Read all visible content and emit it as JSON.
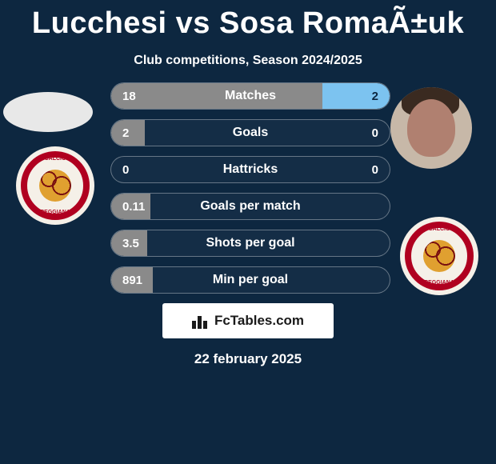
{
  "header": {
    "title": "Lucchesi vs Sosa RomaÃ±uk",
    "subtitle": "Club competitions, Season 2024/2025"
  },
  "players": {
    "left": {
      "name": "Lucchesi",
      "avatar_bg": "#e8e8e8"
    },
    "right": {
      "name": "Sosa RomaÃ±uk",
      "avatar_bg": "#c7b8a8"
    }
  },
  "club_badge": {
    "bg": "#f5f0e8",
    "ring_color": "#b00020",
    "ball_color": "#e0a030",
    "text_top": "CALCIO",
    "text_side": "ASSOC.",
    "text_bottom": "REGGIANA"
  },
  "stats": [
    {
      "label": "Matches",
      "left_val": "18",
      "right_val": "2",
      "left_pct": 76,
      "right_pct": 24,
      "right_on_bar": true
    },
    {
      "label": "Goals",
      "left_val": "2",
      "right_val": "0",
      "left_pct": 12,
      "right_pct": 0,
      "right_on_bar": false
    },
    {
      "label": "Hattricks",
      "left_val": "0",
      "right_val": "0",
      "left_pct": 0,
      "right_pct": 0,
      "right_on_bar": false
    },
    {
      "label": "Goals per match",
      "left_val": "0.11",
      "right_val": "",
      "left_pct": 14,
      "right_pct": 0,
      "right_on_bar": false
    },
    {
      "label": "Shots per goal",
      "left_val": "3.5",
      "right_val": "",
      "left_pct": 13,
      "right_pct": 0,
      "right_on_bar": false
    },
    {
      "label": "Min per goal",
      "left_val": "891",
      "right_val": "",
      "left_pct": 15,
      "right_pct": 0,
      "right_on_bar": false
    }
  ],
  "colors": {
    "page_bg": "#0d2740",
    "bar_left": "#8a8a8a",
    "bar_right": "#7cc3f0",
    "bar_border": "rgba(255,255,255,0.35)"
  },
  "footer": {
    "brand": "FcTables.com",
    "date": "22 february 2025"
  }
}
